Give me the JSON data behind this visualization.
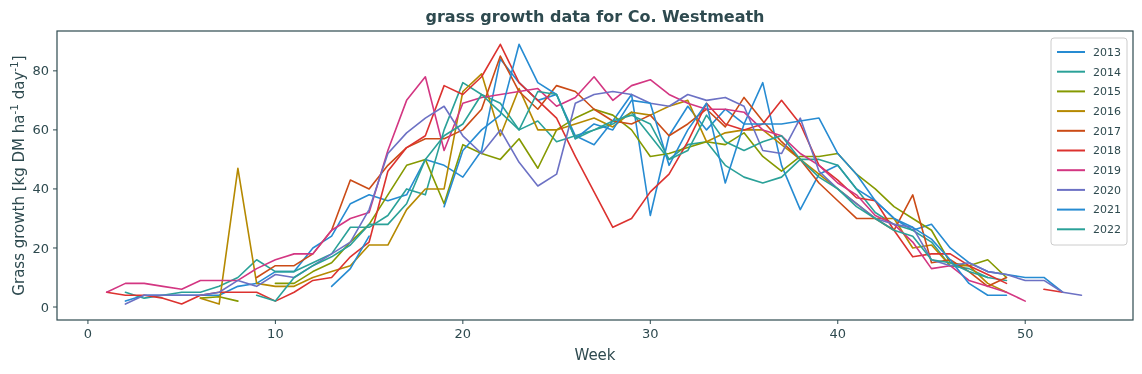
{
  "chart_data": {
    "type": "line",
    "title": "grass growth data for Co. Westmeath",
    "xlabel": "Week",
    "ylabel": "Grass growth [kg DM ha$^{-1}$ day$^{-1}$]",
    "x": [
      1,
      2,
      3,
      4,
      5,
      6,
      7,
      8,
      9,
      10,
      11,
      12,
      13,
      14,
      15,
      16,
      17,
      18,
      19,
      20,
      21,
      22,
      23,
      24,
      25,
      26,
      27,
      28,
      29,
      30,
      31,
      32,
      33,
      34,
      35,
      36,
      37,
      38,
      39,
      40,
      41,
      42,
      43,
      44,
      45,
      46,
      47,
      48,
      49,
      50,
      51,
      52,
      53
    ],
    "xlim": [
      -1.65,
      55.75
    ],
    "xticks": [
      0,
      10,
      20,
      30,
      40,
      50
    ],
    "ylim": [
      -4.4,
      93.5
    ],
    "yticks": [
      0,
      20,
      40,
      60,
      80
    ],
    "legend": "top right",
    "series": [
      {
        "name": "2013",
        "color": "#268bd2",
        "values": [
          null,
          2,
          4,
          4,
          4,
          4,
          4,
          7,
          8,
          12,
          12,
          20,
          24,
          35,
          38,
          36,
          38,
          50,
          48,
          44,
          53,
          84,
          76,
          70,
          72,
          58,
          55,
          63,
          72,
          31,
          58,
          68,
          60,
          67,
          62,
          76,
          48,
          33,
          45,
          48,
          40,
          36,
          30,
          26,
          28,
          20,
          15,
          12,
          11,
          10,
          10,
          5,
          null
        ]
      },
      {
        "name": "2014",
        "color": "#2aa198",
        "values": [
          null,
          5,
          3,
          4,
          5,
          5,
          7,
          10,
          16,
          12,
          12,
          15,
          18,
          27,
          27,
          31,
          40,
          38,
          60,
          76,
          72,
          69,
          60,
          63,
          56,
          58,
          60,
          62,
          66,
          58,
          50,
          55,
          56,
          48,
          44,
          42,
          44,
          50,
          50,
          48,
          40,
          32,
          28,
          26,
          22,
          14,
          13,
          10,
          9,
          null,
          null,
          null,
          null
        ]
      },
      {
        "name": "2015",
        "color": "#859900",
        "values": [
          null,
          null,
          null,
          null,
          null,
          3,
          3.5,
          2,
          null,
          8,
          8,
          12,
          15,
          22,
          28,
          38,
          48,
          50,
          35,
          55,
          52,
          50,
          57,
          47,
          60,
          64,
          67,
          65,
          60,
          51,
          52,
          54,
          56,
          55,
          59,
          51,
          46,
          51,
          51,
          52,
          45,
          40,
          34,
          30,
          26,
          15,
          14,
          16,
          10,
          null,
          null,
          null,
          null
        ]
      },
      {
        "name": "2016",
        "color": "#b58900",
        "values": [
          null,
          null,
          null,
          null,
          null,
          3,
          1,
          47,
          8,
          7,
          7,
          10,
          12,
          14,
          21,
          21,
          33,
          40,
          40,
          73,
          79,
          58,
          74,
          60,
          60,
          62,
          64,
          61,
          66,
          65,
          68,
          70,
          56,
          59,
          60,
          60,
          55,
          50,
          45,
          40,
          35,
          30,
          30,
          20,
          21,
          14,
          14,
          8,
          5,
          null,
          null,
          null,
          null
        ]
      },
      {
        "name": "2017",
        "color": "#cb4b16",
        "values": [
          null,
          null,
          null,
          null,
          null,
          null,
          null,
          null,
          10,
          14,
          14,
          18,
          26,
          43,
          40,
          48,
          54,
          57,
          57,
          60,
          67,
          85,
          73,
          67,
          75,
          73,
          67,
          63,
          62,
          65,
          58,
          62,
          67,
          61,
          71,
          63,
          56,
          50,
          42,
          36,
          30,
          30,
          26,
          38,
          15,
          16,
          12,
          7,
          10,
          null,
          null,
          null,
          null
        ]
      },
      {
        "name": "2018",
        "color": "#dc322f",
        "values": [
          5,
          4,
          4,
          3,
          1,
          4,
          5,
          5,
          5,
          2,
          5,
          9,
          10,
          17,
          22,
          46,
          54,
          58,
          75,
          72,
          78,
          89,
          76,
          70,
          64,
          51,
          39,
          27,
          30,
          39,
          45,
          56,
          69,
          62,
          60,
          62,
          70,
          62,
          48,
          43,
          37,
          36,
          26,
          17,
          18,
          18,
          14,
          11,
          8,
          null,
          6,
          5,
          null
        ]
      },
      {
        "name": "2019",
        "color": "#d33682",
        "values": [
          5,
          8,
          8,
          7,
          6,
          9,
          9,
          9,
          13,
          16,
          18,
          18,
          26,
          30,
          32,
          53,
          70,
          78,
          53,
          69,
          71,
          72,
          73,
          74,
          68,
          71,
          78,
          70,
          75,
          77,
          72,
          69,
          67,
          67,
          66,
          60,
          58,
          52,
          48,
          42,
          38,
          31,
          28,
          22,
          13,
          14,
          9,
          7,
          5,
          2,
          null,
          null,
          null
        ]
      },
      {
        "name": "2020",
        "color": "#6c71c4",
        "values": [
          null,
          1,
          4,
          4,
          4,
          4,
          5,
          9,
          7,
          11,
          10,
          14,
          18,
          22,
          33,
          52,
          59,
          64,
          68,
          58,
          52,
          60,
          49,
          41,
          45,
          69,
          72,
          73,
          72,
          69,
          68,
          72,
          70,
          71,
          68,
          53,
          52,
          64,
          46,
          40,
          35,
          30,
          28,
          27,
          16,
          14,
          15,
          12,
          11,
          9,
          9,
          5,
          4
        ]
      },
      {
        "name": "2021",
        "color": "#268bd2",
        "values": [
          null,
          null,
          null,
          null,
          null,
          null,
          null,
          null,
          null,
          null,
          null,
          null,
          7,
          13,
          24,
          null,
          null,
          null,
          34,
          53,
          60,
          65,
          89,
          76,
          72,
          57,
          62,
          60,
          70,
          69,
          48,
          60,
          69,
          42,
          62,
          62,
          62,
          63,
          64,
          52,
          45,
          36,
          30,
          27,
          23,
          16,
          8,
          4,
          4,
          null,
          null,
          null,
          null
        ]
      },
      {
        "name": "2022",
        "color": "#2aa198",
        "values": [
          null,
          null,
          null,
          null,
          null,
          null,
          null,
          null,
          4,
          2,
          10,
          14,
          17,
          21,
          28,
          28,
          35,
          50,
          58,
          62,
          72,
          66,
          60,
          73,
          72,
          57,
          60,
          63,
          65,
          62,
          50,
          53,
          65,
          56,
          53,
          56,
          58,
          50,
          44,
          40,
          34,
          30,
          26,
          24,
          16,
          15,
          12,
          10,
          null,
          null,
          null,
          null,
          null
        ]
      }
    ]
  }
}
